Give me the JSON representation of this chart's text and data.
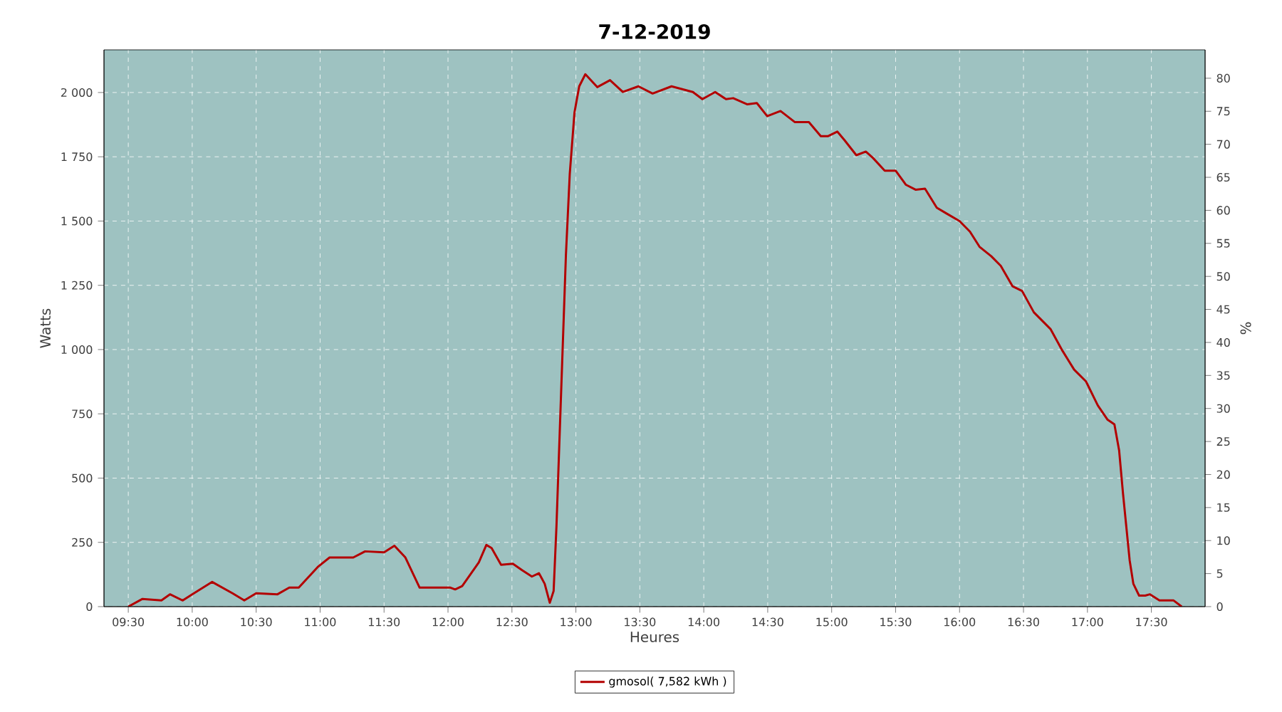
{
  "chart_data": {
    "type": "line",
    "title": "7-12-2019",
    "xlabel": "Heures",
    "ylabel": "Watts",
    "y2label": "%",
    "xlim": [
      9.31,
      17.92
    ],
    "ylim": [
      0,
      2166
    ],
    "y2lim": [
      0,
      84.3
    ],
    "xticks": [
      {
        "value": 9.5,
        "label": "09:30"
      },
      {
        "value": 10,
        "label": "10:00"
      },
      {
        "value": 10.5,
        "label": "10:30"
      },
      {
        "value": 11,
        "label": "11:00"
      },
      {
        "value": 11.5,
        "label": "11:30"
      },
      {
        "value": 12,
        "label": "12:00"
      },
      {
        "value": 12.5,
        "label": "12:30"
      },
      {
        "value": 13,
        "label": "13:00"
      },
      {
        "value": 13.5,
        "label": "13:30"
      },
      {
        "value": 14,
        "label": "14:00"
      },
      {
        "value": 14.5,
        "label": "14:30"
      },
      {
        "value": 15,
        "label": "15:00"
      },
      {
        "value": 15.5,
        "label": "15:30"
      },
      {
        "value": 16,
        "label": "16:00"
      },
      {
        "value": 16.5,
        "label": "16:30"
      },
      {
        "value": 17,
        "label": "17:00"
      },
      {
        "value": 17.5,
        "label": "17:30"
      }
    ],
    "yticks": [
      0,
      250,
      500,
      750,
      {
        "value": 1000,
        "label": "1 000"
      },
      {
        "value": 1250,
        "label": "1 250"
      },
      {
        "value": 1500,
        "label": "1 500"
      },
      {
        "value": 1750,
        "label": "1 750"
      },
      {
        "value": 2000,
        "label": "2 000"
      }
    ],
    "y2ticks": [
      0,
      5,
      10,
      15,
      20,
      25,
      30,
      35,
      40,
      45,
      50,
      55,
      60,
      65,
      70,
      75,
      80
    ],
    "grid": true,
    "legend": "bottom",
    "series": [
      {
        "name": "gmosol( 7,582 kWh )",
        "color": "#b30000",
        "x": [
          9.5,
          9.611,
          9.759,
          9.826,
          9.926,
          10.0,
          10.156,
          10.315,
          10.407,
          10.5,
          10.667,
          10.759,
          10.833,
          10.981,
          11.074,
          11.259,
          11.352,
          11.5,
          11.581,
          11.667,
          11.778,
          12.019,
          12.056,
          12.111,
          12.241,
          12.3,
          12.341,
          12.415,
          12.507,
          12.581,
          12.656,
          12.711,
          12.756,
          12.796,
          12.826,
          12.848,
          12.87,
          12.896,
          12.922,
          12.952,
          12.989,
          13.026,
          13.074,
          13.167,
          13.267,
          13.367,
          13.489,
          13.6,
          13.748,
          13.915,
          13.989,
          14.089,
          14.174,
          14.23,
          14.341,
          14.415,
          14.496,
          14.6,
          14.711,
          14.822,
          14.915,
          14.97,
          15.044,
          15.1,
          15.193,
          15.267,
          15.322,
          15.415,
          15.5,
          15.581,
          15.656,
          15.73,
          15.822,
          15.896,
          16.0,
          16.081,
          16.156,
          16.248,
          16.322,
          16.415,
          16.489,
          16.581,
          16.711,
          16.804,
          16.896,
          16.989,
          17.081,
          17.156,
          17.211,
          17.248,
          17.278,
          17.304,
          17.33,
          17.359,
          17.404,
          17.452,
          17.489,
          17.563,
          17.674,
          17.737
        ],
        "values": [
          0,
          30,
          24,
          48,
          24,
          48,
          96,
          52,
          24,
          52,
          48,
          74,
          74,
          154,
          191,
          191,
          215,
          211,
          237,
          191,
          74,
          74,
          67,
          80,
          172,
          240,
          228,
          163,
          167,
          141,
          117,
          130,
          89,
          15,
          61,
          311,
          626,
          996,
          1367,
          1682,
          1922,
          2024,
          2071,
          2021,
          2048,
          2002,
          2024,
          1996,
          2024,
          2002,
          1974,
          2002,
          1974,
          1978,
          1954,
          1959,
          1908,
          1928,
          1885,
          1885,
          1830,
          1830,
          1848,
          1815,
          1756,
          1770,
          1746,
          1696,
          1696,
          1641,
          1622,
          1626,
          1552,
          1530,
          1500,
          1459,
          1400,
          1363,
          1326,
          1246,
          1228,
          1145,
          1080,
          996,
          922,
          876,
          783,
          728,
          709,
          607,
          441,
          311,
          181,
          89,
          43,
          43,
          48,
          24,
          24,
          0
        ]
      }
    ]
  }
}
